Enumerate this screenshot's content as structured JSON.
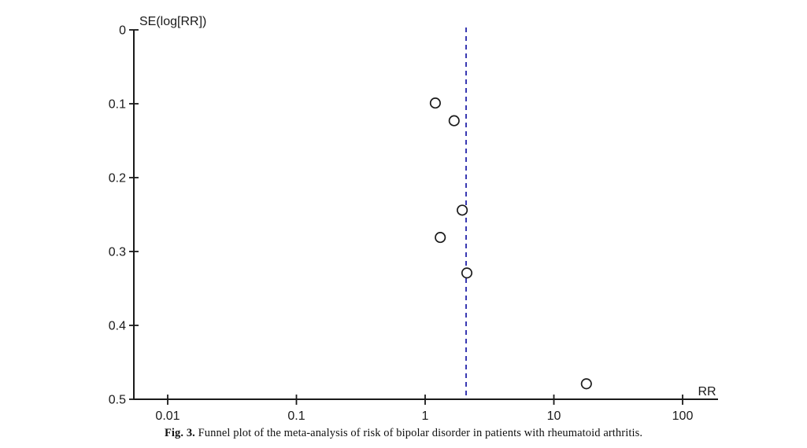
{
  "figure": {
    "caption_label": "Fig. 3.",
    "caption_text": "Funnel plot of the meta-analysis of risk of bipolar disorder in patients with rheumatoid arthritis."
  },
  "chart_data": {
    "type": "scatter",
    "chart_kind": "funnel-plot",
    "title": "",
    "xlabel": "RR",
    "ylabel": "SE(log[RR])",
    "x_scale": "log10",
    "x_axis_range": [
      0.0055,
      188
    ],
    "ylim": [
      0,
      0.5
    ],
    "y_inverted": true,
    "grid": false,
    "legend_position": "none",
    "x_ticks": [
      {
        "value": 0.01,
        "label": "0.01"
      },
      {
        "value": 0.1,
        "label": "0.1"
      },
      {
        "value": 1,
        "label": "1"
      },
      {
        "value": 10,
        "label": "10"
      },
      {
        "value": 100,
        "label": "100"
      }
    ],
    "y_ticks": [
      {
        "value": 0,
        "label": "0"
      },
      {
        "value": 0.1,
        "label": "0.1"
      },
      {
        "value": 0.2,
        "label": "0.2"
      },
      {
        "value": 0.3,
        "label": "0.3"
      },
      {
        "value": 0.4,
        "label": "0.4"
      },
      {
        "value": 0.5,
        "label": "0.5"
      }
    ],
    "points": [
      {
        "rr": 1.2,
        "se": 0.099
      },
      {
        "rr": 1.68,
        "se": 0.123
      },
      {
        "rr": 1.94,
        "se": 0.244
      },
      {
        "rr": 1.31,
        "se": 0.281
      },
      {
        "rr": 2.11,
        "se": 0.329
      },
      {
        "rr": 17.9,
        "se": 0.479
      }
    ],
    "pooled_effect_line": {
      "rr": 2.08,
      "style": "dashed",
      "orientation": "vertical"
    },
    "colors": {
      "axis": "#1a1a1a",
      "tick_text": "#1a1a1a",
      "marker_stroke": "#1a1a1a",
      "marker_fill": "#ffffff",
      "pooled_line": "#2f2fae",
      "background": "#ffffff"
    }
  }
}
